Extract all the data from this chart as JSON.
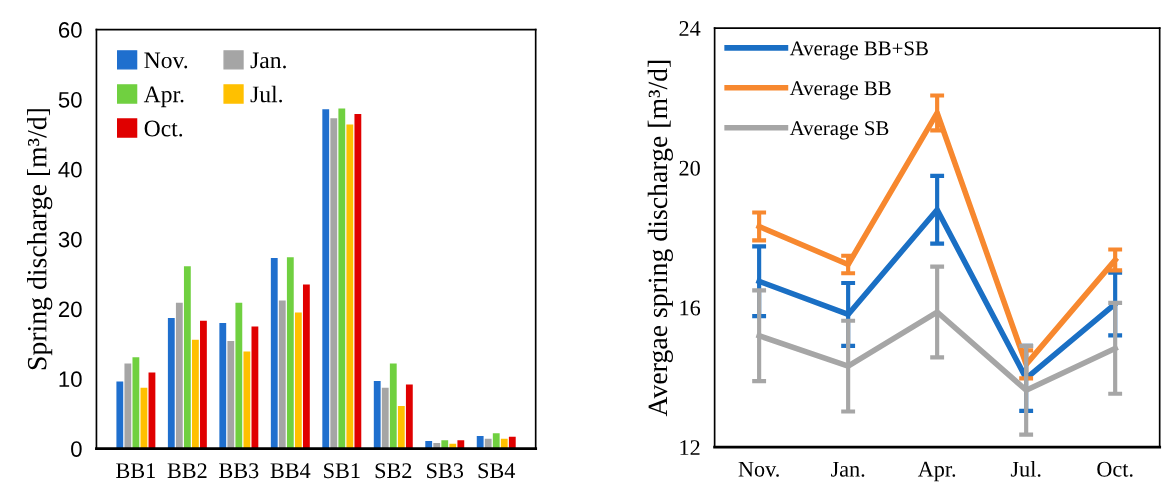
{
  "chart_data": [
    {
      "type": "bar",
      "ylabel": "Spring discharge [m³/d]",
      "categories": [
        "BB1",
        "BB2",
        "BB3",
        "BB4",
        "SB1",
        "SB2",
        "SB3",
        "SB4"
      ],
      "ylim": [
        0,
        60
      ],
      "yticks": [
        0,
        10,
        20,
        30,
        40,
        50,
        60
      ],
      "grid": false,
      "legend": "top left",
      "series": [
        {
          "name": "Nov.",
          "color": "#1f6fce",
          "values": [
            9.6,
            18.7,
            18.0,
            27.3,
            48.6,
            9.7,
            1.1,
            1.8
          ]
        },
        {
          "name": "Jan.",
          "color": "#a5a5a5",
          "values": [
            12.2,
            20.9,
            15.4,
            21.2,
            47.3,
            8.7,
            0.8,
            1.4
          ]
        },
        {
          "name": "Apr.",
          "color": "#70d040",
          "values": [
            13.1,
            26.1,
            20.9,
            27.4,
            48.7,
            12.2,
            1.2,
            2.2
          ]
        },
        {
          "name": "Jul.",
          "color": "#ffc000",
          "values": [
            8.7,
            15.6,
            13.9,
            19.5,
            46.4,
            6.1,
            0.7,
            1.4
          ]
        },
        {
          "name": "Oct.",
          "color": "#e00000",
          "values": [
            10.9,
            18.3,
            17.5,
            23.5,
            47.9,
            9.2,
            1.2,
            1.7
          ]
        }
      ]
    },
    {
      "type": "line",
      "ylabel": "Avergae spring discharge [m³/d]",
      "categories": [
        "Nov.",
        "Jan.",
        "Apr.",
        "Jul.",
        "Oct."
      ],
      "ylim": [
        12,
        24
      ],
      "yticks": [
        12,
        16,
        20,
        24
      ],
      "grid": false,
      "legend": "top left",
      "marker": "none",
      "line_style": "solid",
      "series": [
        {
          "name": "Average BB+SB",
          "color": "#1a6fc4",
          "values": [
            16.75,
            15.8,
            18.8,
            13.97,
            16.1
          ],
          "errors": [
            1.0,
            0.9,
            0.97,
            0.93,
            0.9
          ]
        },
        {
          "name": "Average BB",
          "color": "#f7882f",
          "values": [
            18.32,
            17.23,
            21.57,
            14.37,
            17.36
          ],
          "errors": [
            0.4,
            0.25,
            0.5,
            0.4,
            0.3
          ]
        },
        {
          "name": "Average SB",
          "color": "#a6a6a6",
          "values": [
            15.19,
            14.32,
            15.87,
            13.63,
            14.83
          ],
          "errors": [
            1.3,
            1.3,
            1.3,
            1.27,
            1.3
          ]
        }
      ]
    }
  ]
}
